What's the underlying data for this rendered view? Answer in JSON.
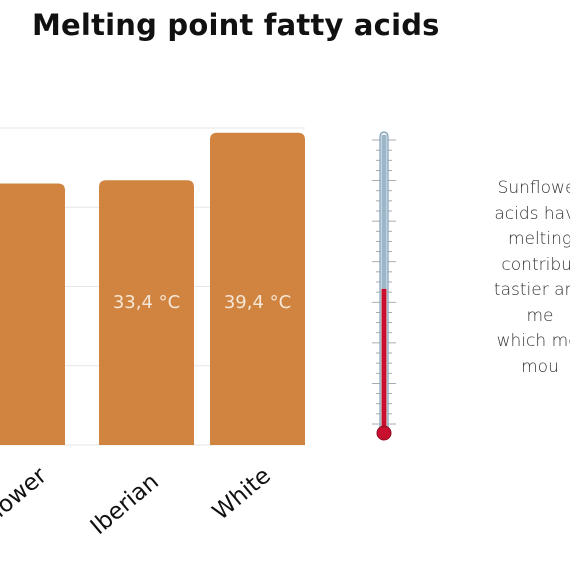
{
  "page": {
    "title": "Melting point fatty acids"
  },
  "chart_data": {
    "type": "bar",
    "title": "Melting point fatty acids",
    "categories": [
      "Sunflower",
      "Iberian",
      "White"
    ],
    "visible_categories": [
      "flower",
      "Iberian",
      "White"
    ],
    "values": [
      33.0,
      33.4,
      39.4
    ],
    "data_labels": [
      "",
      "33,4 °C",
      "39,4 °C"
    ],
    "unit": "°C",
    "ylim": [
      0,
      40
    ],
    "grid": true,
    "bar_color": "#d08440",
    "label_color": "#f5e6d6"
  },
  "thermometer": {
    "fill_fraction": 0.47,
    "fluid_color": "#c8102e",
    "glass_color": "#7a9fb5"
  },
  "note": {
    "lines": [
      "Sunflower",
      "acids have",
      "melting",
      "contribut",
      "tastier and",
      "me",
      "which mel",
      "mou"
    ]
  }
}
